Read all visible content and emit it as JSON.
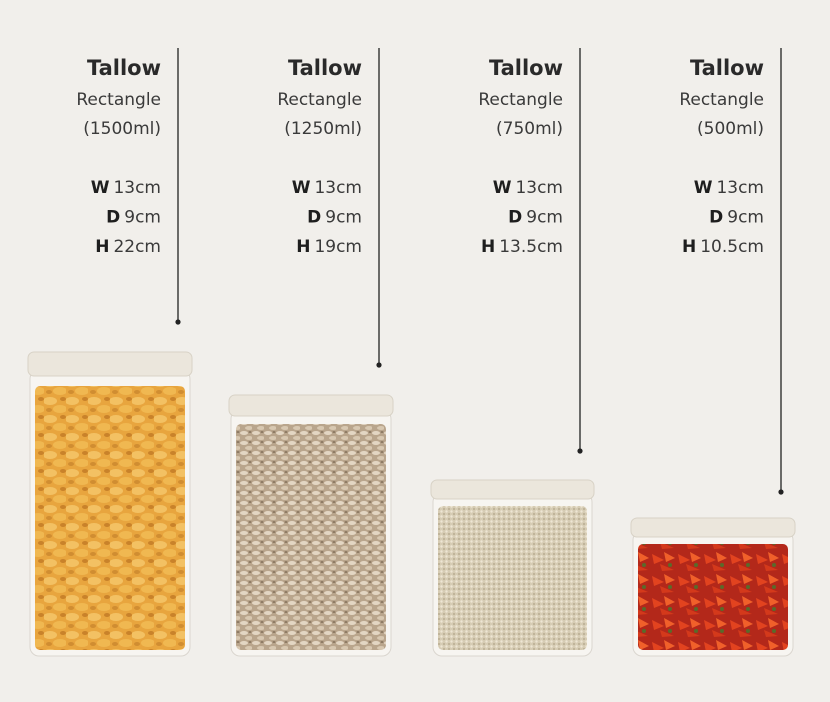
{
  "products": [
    {
      "name": "Tallow",
      "shape": "Rectangle",
      "volume": "(1500ml)",
      "dims": [
        {
          "label": "W",
          "value": "13cm"
        },
        {
          "label": "D",
          "value": "9cm"
        },
        {
          "label": "H",
          "value": "22cm"
        }
      ]
    },
    {
      "name": "Tallow",
      "shape": "Rectangle",
      "volume": "(1250ml)",
      "dims": [
        {
          "label": "W",
          "value": "13cm"
        },
        {
          "label": "D",
          "value": "9cm"
        },
        {
          "label": "H",
          "value": "19cm"
        }
      ]
    },
    {
      "name": "Tallow",
      "shape": "Rectangle",
      "volume": "(750ml)",
      "dims": [
        {
          "label": "W",
          "value": "13cm"
        },
        {
          "label": "D",
          "value": "9cm"
        },
        {
          "label": "H",
          "value": "13.5cm"
        }
      ]
    },
    {
      "name": "Tallow",
      "shape": "Rectangle",
      "volume": "(500ml)",
      "dims": [
        {
          "label": "W",
          "value": "13cm"
        },
        {
          "label": "D",
          "value": "9cm"
        },
        {
          "label": "H",
          "value": "10.5cm"
        }
      ]
    }
  ]
}
